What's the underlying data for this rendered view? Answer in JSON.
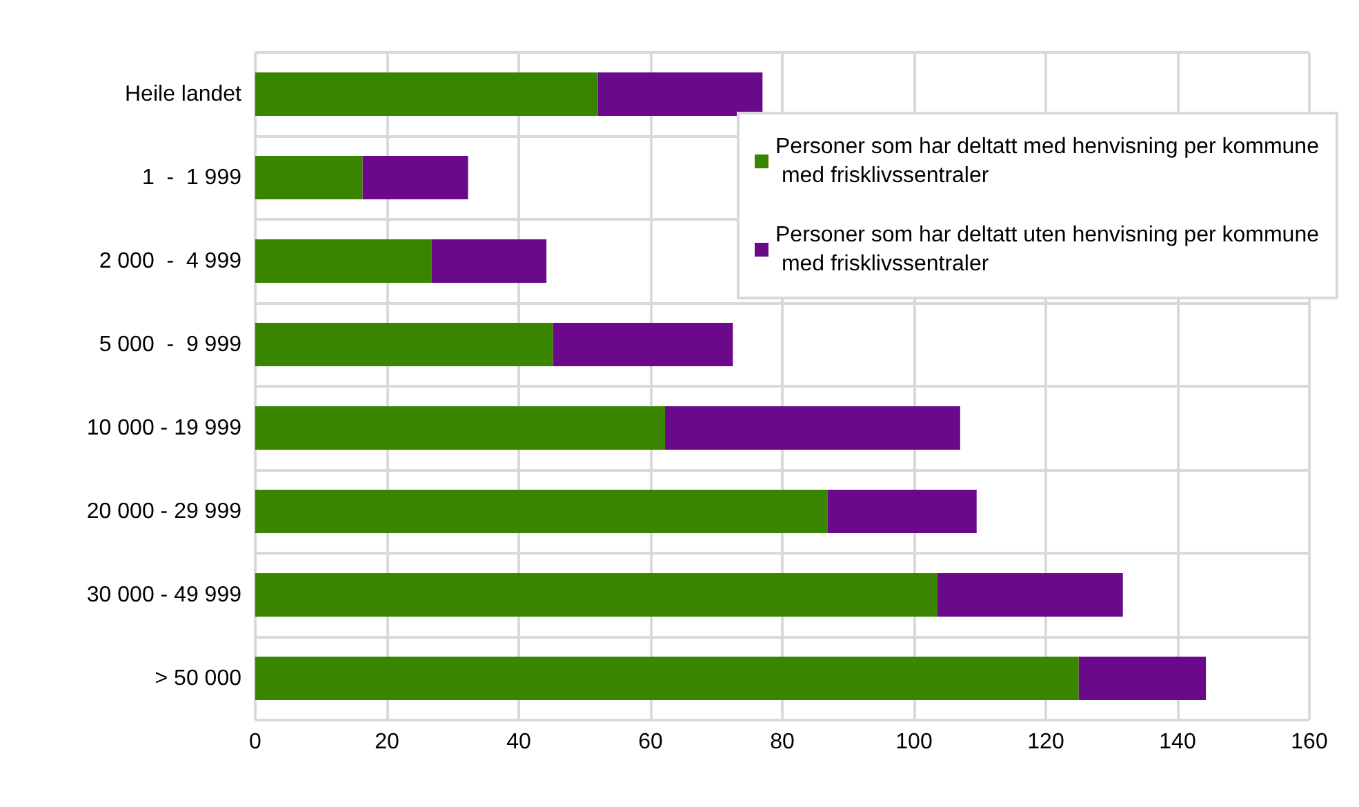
{
  "chart_data": {
    "type": "bar",
    "orientation": "horizontal",
    "stacked": true,
    "categories": [
      "Heile landet",
      "1  -  1 999",
      "2 000  -  4 999",
      "5 000  -  9 999",
      "10 000 - 19 999",
      "20 000 - 29 999",
      "30 000 - 49 999",
      "> 50 000"
    ],
    "series": [
      {
        "name": "Personer som har deltatt med henvisning per kommune med frisklivssentraler",
        "color": "#3a8500",
        "values": [
          52,
          16.3,
          26.8,
          45.2,
          62.2,
          86.9,
          103.5,
          125
        ]
      },
      {
        "name": "Personer som har deltatt uten henvisning per kommune med frisklivssentraler",
        "color": "#6a0a8a",
        "values": [
          25,
          16,
          17.4,
          27.3,
          44.8,
          22.6,
          28.2,
          19.3
        ]
      }
    ],
    "xlim": [
      0,
      160
    ],
    "xticks": [
      0,
      20,
      40,
      60,
      80,
      100,
      120,
      140,
      160
    ],
    "grid": true,
    "legend": "top right"
  }
}
